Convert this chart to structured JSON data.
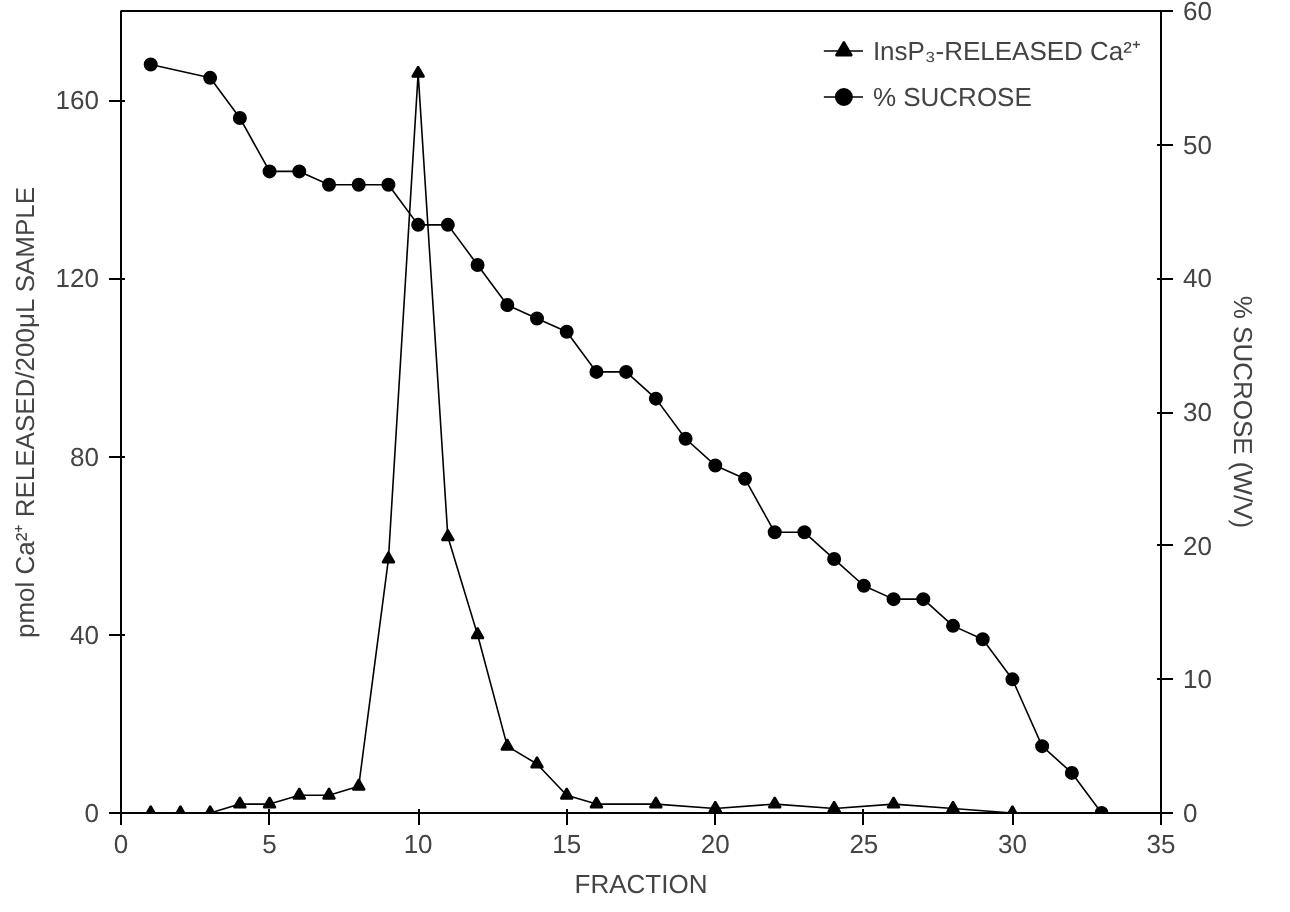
{
  "chart_data": {
    "type": "line",
    "xlabel": "FRACTION",
    "ylabel": "pmol Ca²⁺ RELEASED/200μL SAMPLE",
    "y2label": "% SUCROSE (W/V)",
    "xlim": [
      0,
      35
    ],
    "xticks": [
      0,
      5,
      10,
      15,
      20,
      25,
      30,
      35
    ],
    "ylim": [
      0,
      180
    ],
    "yticks": [
      0,
      40,
      80,
      120,
      160
    ],
    "y2lim": [
      0,
      60
    ],
    "y2ticks": [
      0,
      10,
      20,
      30,
      40,
      50,
      60
    ],
    "grid": false,
    "legend": "top right",
    "series": [
      {
        "name": "InsP₃-RELEASED Ca²⁺",
        "color": "#000000",
        "marker": "triangle",
        "x": [
          1,
          2,
          3,
          4,
          5,
          6,
          7,
          8,
          9,
          10,
          11,
          12,
          13,
          14,
          15,
          16,
          18,
          20,
          22,
          24,
          26,
          28,
          30
        ],
        "values": [
          0,
          0,
          0,
          2,
          2,
          4,
          4,
          6,
          57,
          166,
          62,
          40,
          15,
          11,
          4,
          2,
          2,
          1,
          2,
          1,
          2,
          1,
          0
        ]
      },
      {
        "name": "% SUCROSE",
        "color": "#000000",
        "marker": "circle",
        "axis": "y2",
        "x": [
          1,
          3,
          4,
          5,
          6,
          7,
          8,
          9,
          10,
          11,
          12,
          13,
          14,
          15,
          16,
          17,
          18,
          19,
          20,
          21,
          22,
          23,
          24,
          25,
          26,
          27,
          28,
          29,
          30,
          31,
          32,
          33
        ],
        "values": [
          56,
          55,
          52,
          48,
          48,
          47,
          47,
          47,
          44,
          44,
          41,
          38,
          37,
          36,
          33,
          33,
          31,
          28,
          26,
          25,
          21,
          21,
          19,
          17,
          16,
          16,
          14,
          13,
          10,
          5,
          3,
          0
        ]
      }
    ]
  }
}
